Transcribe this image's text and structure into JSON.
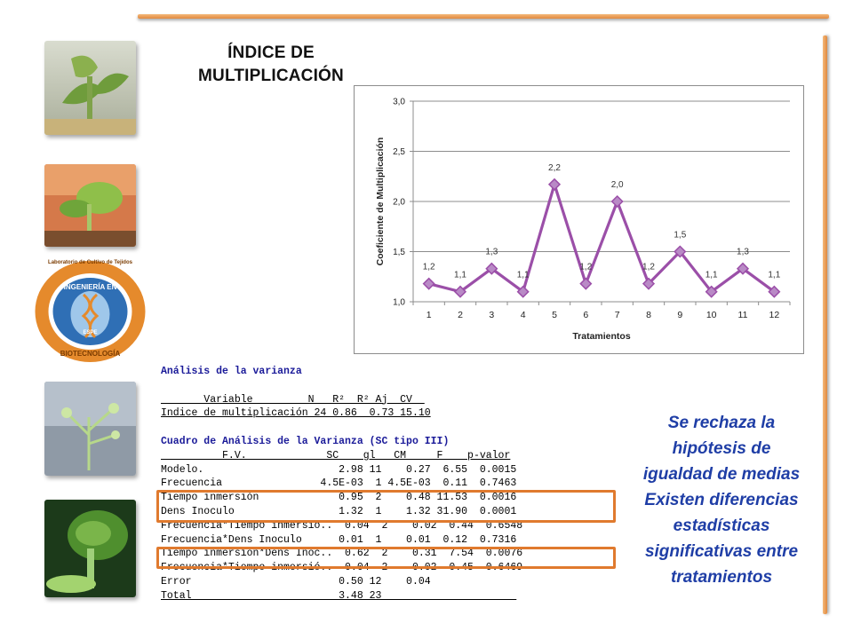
{
  "slide": {
    "title_line1": "ÍNDICE DE",
    "title_line2": "MULTIPLICACIÓN",
    "logo_text_top": "Laboratorio de Cultivo de Tejidos",
    "logo_text_mid": "INGENIERÍA EN",
    "logo_text_bottom": "BIOTECNOLOGÍA",
    "logo_text_small": "ESPE",
    "accent_color": "#e07a2e",
    "conclusion": [
      "Se rechaza la",
      "hipótesis de",
      "igualdad de medias",
      "Existen diferencias",
      "estadísticas",
      "significativas entre",
      "tratamientos"
    ]
  },
  "chart_data": {
    "type": "line",
    "x": [
      "1",
      "2",
      "3",
      "4",
      "5",
      "6",
      "7",
      "8",
      "9",
      "10",
      "11",
      "12"
    ],
    "values": [
      1.18,
      1.1,
      1.33,
      1.1,
      2.17,
      1.18,
      2.0,
      1.18,
      1.5,
      1.1,
      1.33,
      1.1
    ],
    "data_labels": [
      "1,2",
      "1,1",
      "1,3",
      "1,1",
      "2,2",
      "1,2",
      "2,0",
      "1,2",
      "1,5",
      "1,1",
      "1,3",
      "1,1"
    ],
    "xlabel": "Tratamientos",
    "ylabel": "Coeficiente de Multiplicación",
    "ylim": [
      1.0,
      3.0
    ],
    "yticks": [
      1.0,
      1.5,
      2.0,
      2.5,
      3.0
    ],
    "ytick_labels": [
      "1,0",
      "1,5",
      "2,0",
      "2,5",
      "3,0"
    ],
    "grid": "horizontal",
    "legend": "none",
    "line_color": "#9b4fa8",
    "marker_color": "#b98ac6"
  },
  "anova": {
    "title1": "Análisis de la varianza",
    "table1_header": "       Variable         N   R²  R² Aj  CV  ",
    "table1_row": "Indice de multiplicación 24 0.86  0.73 15.10",
    "title2": "Cuadro de Análisis de la Varianza (SC tipo III)",
    "table2_header": "          F.V.             SC    gl   CM     F    p-valor",
    "rows": [
      "Modelo.                      2.98 11    0.27  6.55  0.0015",
      "Frecuencia                4.5E-03  1 4.5E-03  0.11  0.7463",
      "Tiempo inmersión             0.95  2    0.48 11.53  0.0016",
      "Dens Inoculo                 1.32  1    1.32 31.90  0.0001",
      "Frecuencia*Tiempo inmersió..  0.04  2    0.02  0.44  0.6548",
      "Frecuencia*Dens Inoculo      0.01  1    0.01  0.12  0.7316",
      "Tiempo inmersión*Dens Inoc..  0.62  2    0.31  7.54  0.0076",
      "Frecuencia*Tiempo inmersió..  0.04  2    0.02  0.45  0.6469",
      "Error                        0.50 12    0.04              ",
      "Total                        3.48 23                      "
    ]
  }
}
